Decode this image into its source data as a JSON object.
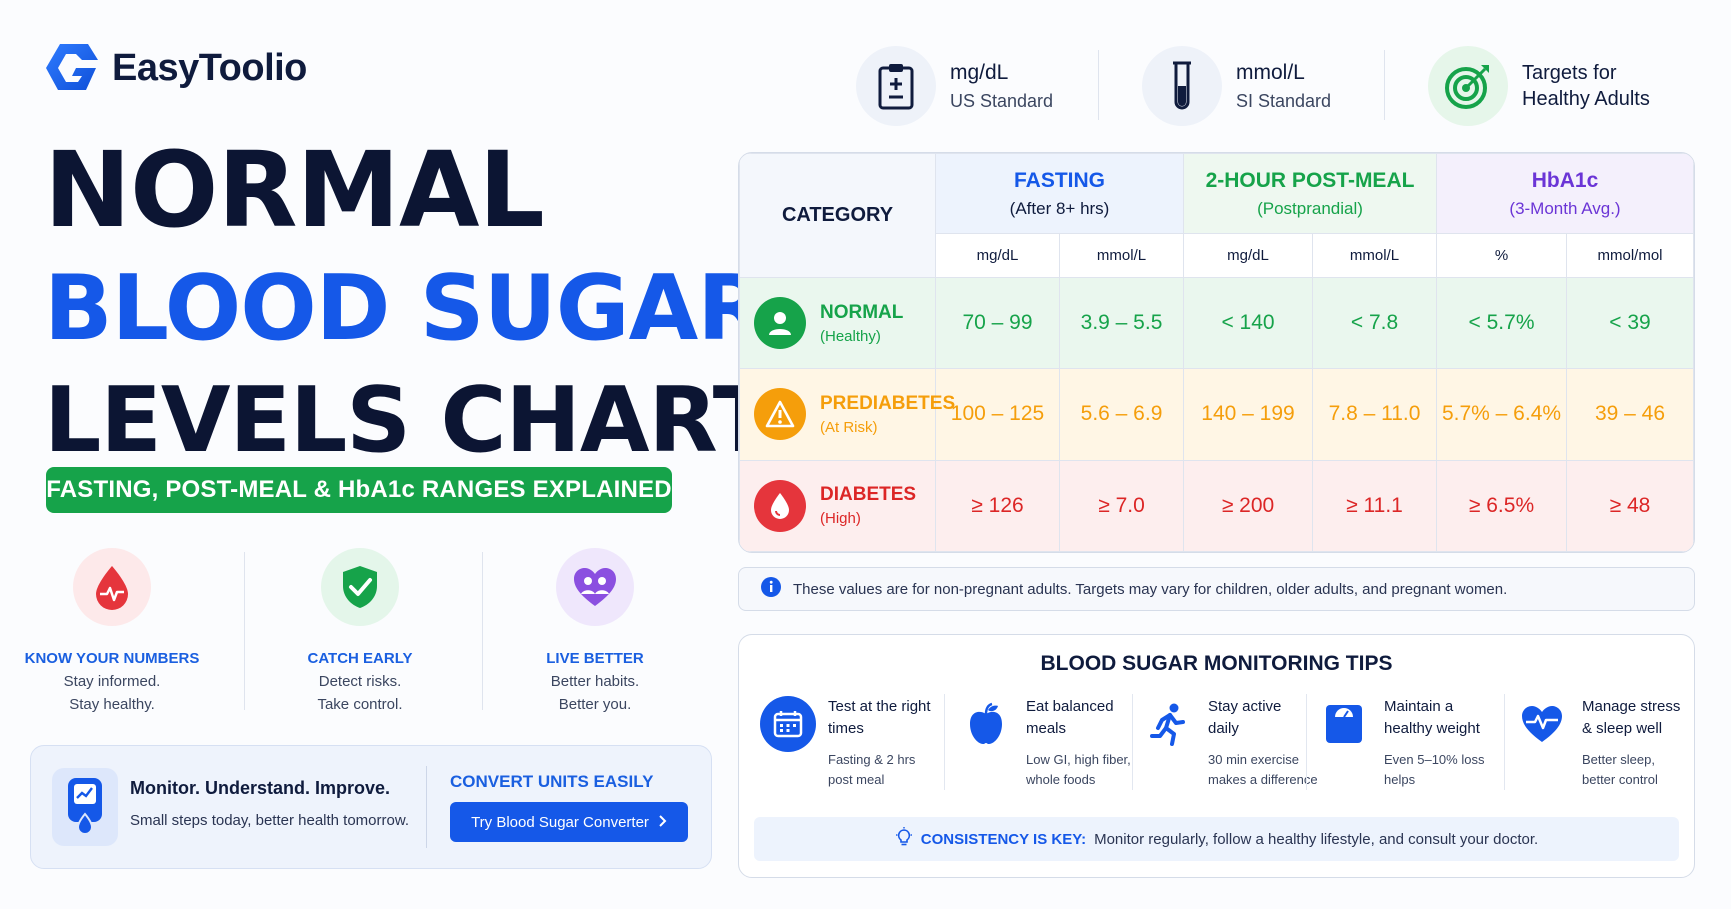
{
  "brand": {
    "name": "EasyToolio",
    "accent": "#1558e8",
    "green": "#16a34a",
    "amber": "#f59e0b",
    "red": "#dc2626",
    "purple": "#6b35d6"
  },
  "title": {
    "line1": "NORMAL",
    "line2": "BLOOD SUGAR",
    "line3": "LEVELS CHART"
  },
  "subtitle": "FASTING, POST-MEAL & HbA1c RANGES EXPLAINED",
  "features": [
    {
      "icon": "blood-drop-pulse-icon",
      "title": "KNOW YOUR NUMBERS",
      "line1": "Stay informed.",
      "line2": "Stay healthy."
    },
    {
      "icon": "shield-check-icon",
      "title": "CATCH EARLY",
      "line1": "Detect risks.",
      "line2": "Take control."
    },
    {
      "icon": "heart-people-icon",
      "title": "LIVE BETTER",
      "line1": "Better habits.",
      "line2": "Better you."
    }
  ],
  "monitor": {
    "title": "Monitor. Understand. Improve.",
    "subtitle": "Small steps today, better health tomorrow.",
    "convert_title": "CONVERT UNITS EASILY",
    "convert_button": "Try Blood Sugar Converter"
  },
  "units": [
    {
      "icon": "clipboard-plus-icon",
      "label": "mg/dL",
      "sub": "US Standard"
    },
    {
      "icon": "test-tube-icon",
      "label": "mmol/L",
      "sub": "SI Standard"
    },
    {
      "icon": "target-icon",
      "label": "Targets for",
      "sub": "Healthy Adults"
    }
  ],
  "table": {
    "category_header": "CATEGORY",
    "groups": [
      {
        "title": "FASTING",
        "sub": "(After 8+ hrs)"
      },
      {
        "title": "2-HOUR POST-MEAL",
        "sub": "(Postprandial)"
      },
      {
        "title": "HbA1c",
        "sub": "(3-Month Avg.)"
      }
    ],
    "units": [
      "mg/dL",
      "mmol/L",
      "mg/dL",
      "mmol/L",
      "%",
      "mmol/mol"
    ],
    "rows": [
      {
        "name": "NORMAL",
        "sub": "(Healthy)",
        "icon": "person-icon",
        "values": [
          "70 – 99",
          "3.9 – 5.5",
          "< 140",
          "< 7.8",
          "< 5.7%",
          "< 39"
        ]
      },
      {
        "name": "PREDIABETES",
        "sub": "(At Risk)",
        "icon": "warning-icon",
        "values": [
          "100 – 125",
          "5.6 – 6.9",
          "140 – 199",
          "7.8 – 11.0",
          "5.7% – 6.4%",
          "39 – 46"
        ]
      },
      {
        "name": "DIABETES",
        "sub": "(High)",
        "icon": "blood-drop-icon",
        "values": [
          "≥ 126",
          "≥ 7.0",
          "≥ 200",
          "≥ 11.1",
          "≥ 6.5%",
          "≥ 48"
        ]
      }
    ]
  },
  "note": "These values are for non-pregnant adults. Targets may vary for children, older adults, and pregnant women.",
  "tips": {
    "title": "BLOOD SUGAR MONITORING TIPS",
    "items": [
      {
        "icon": "calendar-clock-icon",
        "h1": "Test at the right",
        "h2": "times",
        "p1": "Fasting & 2 hrs",
        "p2": "post meal"
      },
      {
        "icon": "apple-icon",
        "h1": "Eat balanced",
        "h2": "meals",
        "p1": "Low GI, high fiber,",
        "p2": "whole foods"
      },
      {
        "icon": "running-icon",
        "h1": "Stay active",
        "h2": "daily",
        "p1": "30 min exercise",
        "p2": "makes a difference"
      },
      {
        "icon": "scale-icon",
        "h1": "Maintain a",
        "h2": "healthy weight",
        "p1": "Even 5–10% loss",
        "p2": "helps"
      },
      {
        "icon": "heart-pulse-icon",
        "h1": "Manage stress",
        "h2": "& sleep well",
        "p1": "Better sleep,",
        "p2": "better control"
      }
    ],
    "consistency_bold": "CONSISTENCY IS KEY:",
    "consistency_text": "Monitor regularly, follow a healthy lifestyle, and consult your doctor."
  }
}
